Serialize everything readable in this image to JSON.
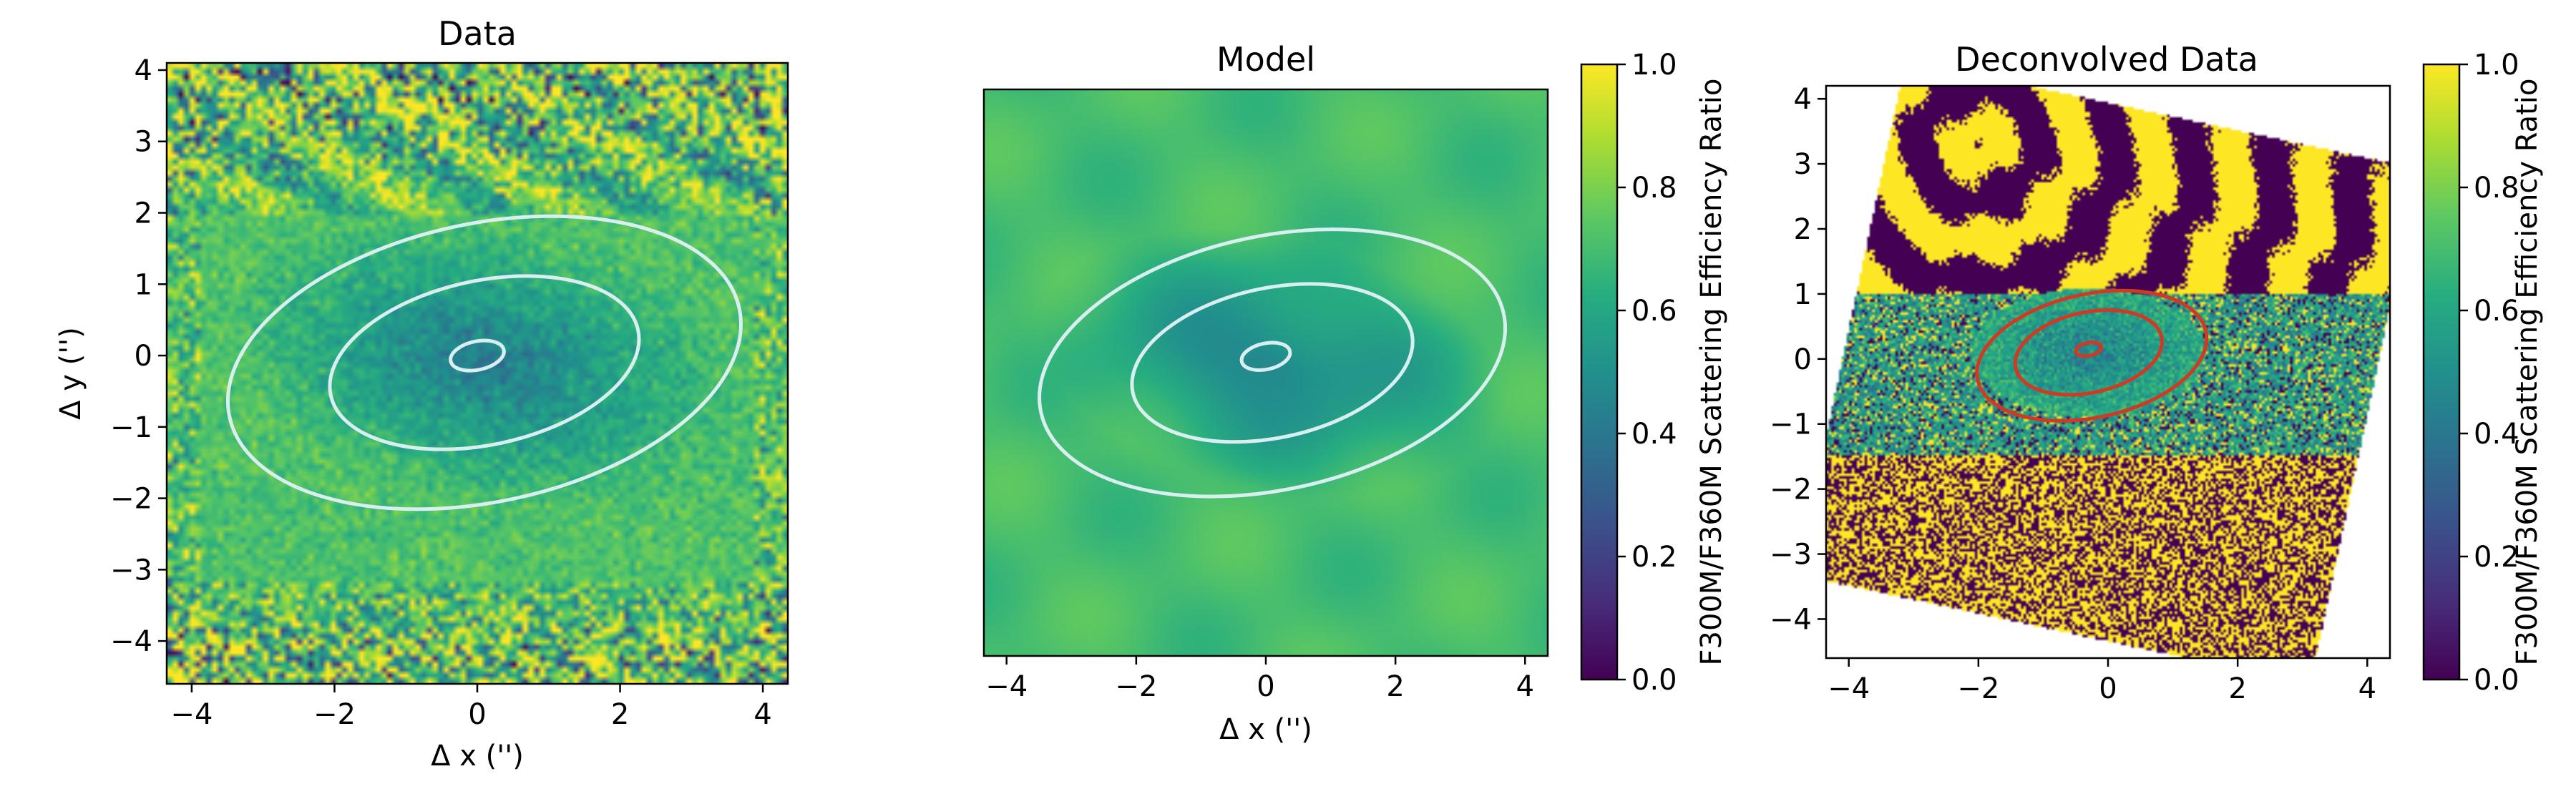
{
  "panels": [
    {
      "key": "data",
      "title": "Data",
      "xlabel": "Δ x ('')",
      "ylabel": "Δ y ('')",
      "xlim": [
        -4.35,
        4.35
      ],
      "ylim": [
        -4.6,
        4.1
      ],
      "xticks": [
        -4,
        -2,
        0,
        2,
        4
      ],
      "xtick_labels": [
        "−4",
        "−2",
        "0",
        "2",
        "4"
      ],
      "yticks": [
        -4,
        -3,
        -2,
        -1,
        0,
        1,
        2,
        3,
        4
      ],
      "ytick_labels": [
        "−4",
        "−3",
        "−2",
        "−1",
        "0",
        "1",
        "2",
        "3",
        "4"
      ],
      "contours": [
        {
          "cx": 0,
          "cy": 0,
          "a": 0.38,
          "b": 0.2,
          "angle_deg": -12
        },
        {
          "cx": 0.1,
          "cy": -0.1,
          "a": 2.2,
          "b": 1.15,
          "angle_deg": -12
        },
        {
          "cx": 0.1,
          "cy": -0.1,
          "a": 3.65,
          "b": 1.95,
          "angle_deg": -12
        }
      ],
      "contour_color": "#d8eef0"
    },
    {
      "key": "model",
      "title": "Model",
      "xlabel": "Δ x ('')",
      "xlim": [
        -4.35,
        4.35
      ],
      "ylim": [
        -4.6,
        4.1
      ],
      "xticks": [
        -4,
        -2,
        0,
        2,
        4
      ],
      "xtick_labels": [
        "−4",
        "−2",
        "0",
        "2",
        "4"
      ],
      "contours": [
        {
          "cx": 0,
          "cy": 0,
          "a": 0.38,
          "b": 0.2,
          "angle_deg": -12
        },
        {
          "cx": 0.1,
          "cy": -0.1,
          "a": 2.2,
          "b": 1.15,
          "angle_deg": -12
        },
        {
          "cx": 0.1,
          "cy": -0.1,
          "a": 3.65,
          "b": 1.95,
          "angle_deg": -12
        }
      ],
      "contour_color": "#d8eef0",
      "colorbar": {
        "label": "F300M/F360M Scattering Efficiency Ratio",
        "range": [
          0,
          1
        ],
        "ticks": [
          0,
          0.2,
          0.4,
          0.6,
          0.8,
          1.0
        ],
        "tick_labels": [
          "0.0",
          "0.2",
          "0.4",
          "0.6",
          "0.8",
          "1.0"
        ]
      }
    },
    {
      "key": "deconvolved",
      "title": "Deconvolved Data",
      "xlim": [
        -4.35,
        4.35
      ],
      "ylim": [
        -4.6,
        4.2
      ],
      "xticks": [
        -4,
        -2,
        0,
        2,
        4
      ],
      "xtick_labels": [
        "−4",
        "−2",
        "0",
        "2",
        "4"
      ],
      "yticks": [
        -4,
        -3,
        -2,
        -1,
        0,
        1,
        2,
        3,
        4
      ],
      "ytick_labels": [
        "−4",
        "−3",
        "−2",
        "−1",
        "0",
        "1",
        "2",
        "3",
        "4"
      ],
      "contours": [
        {
          "cx": -0.3,
          "cy": 0.15,
          "a": 0.2,
          "b": 0.1,
          "angle_deg": -12
        },
        {
          "cx": -0.3,
          "cy": 0.1,
          "a": 1.15,
          "b": 0.62,
          "angle_deg": -12
        },
        {
          "cx": -0.25,
          "cy": 0.05,
          "a": 1.8,
          "b": 0.95,
          "angle_deg": -12
        }
      ],
      "contour_color": "#d03a22",
      "colorbar": {
        "label": "F300M/F360M Scattering Efficiency Ratio",
        "range": [
          0,
          1
        ],
        "ticks": [
          0,
          0.2,
          0.4,
          0.6,
          0.8,
          1.0
        ],
        "tick_labels": [
          "0.0",
          "0.2",
          "0.4",
          "0.6",
          "0.8",
          "1.0"
        ]
      }
    }
  ],
  "chart_data": {
    "type": "heatmap",
    "colormap": "viridis",
    "value_range": [
      0,
      1
    ],
    "quantity": "F300M/F360M Scattering Efficiency Ratio",
    "panels": [
      "Data",
      "Model",
      "Deconvolved Data"
    ]
  }
}
